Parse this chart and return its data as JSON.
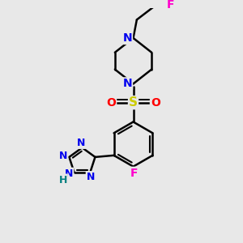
{
  "background_color": "#e8e8e8",
  "bond_color": "#000000",
  "bond_width": 1.8,
  "fig_width": 3.0,
  "fig_height": 3.0,
  "dpi": 100,
  "colors": {
    "F_pink": "#ff00cc",
    "F_green": "#cc0066",
    "N": "#0000ee",
    "S": "#cccc00",
    "O": "#ff0000",
    "H": "#008080"
  }
}
